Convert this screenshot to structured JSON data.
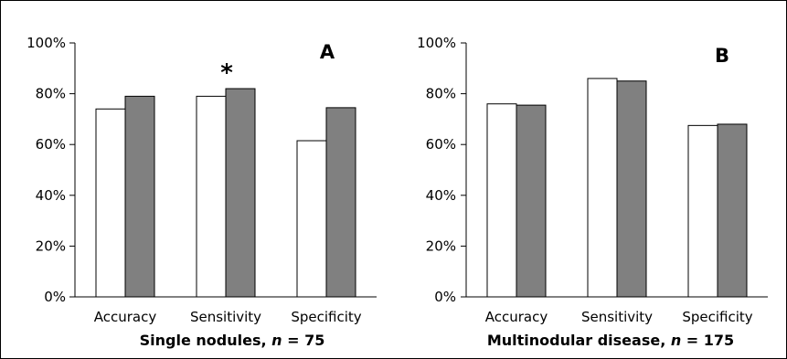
{
  "chart_data": [
    {
      "type": "bar",
      "panel_label": "A",
      "caption": {
        "prefix": "Single nodules, ",
        "n_symbol": "n",
        "suffix": " = 75"
      },
      "categories": [
        "Accuracy",
        "Sensitivity",
        "Specificity"
      ],
      "series": [
        {
          "values": [
            74,
            79,
            61.5
          ],
          "color": "#ffffff"
        },
        {
          "values": [
            79,
            82,
            74.5
          ],
          "color": "#808080"
        }
      ],
      "ylim": [
        0,
        100
      ],
      "yticks": [
        "0%",
        "20%",
        "40%",
        "60%",
        "80%",
        "100%"
      ],
      "ytick_values": [
        0,
        20,
        40,
        60,
        80,
        100
      ],
      "annotation": {
        "text": "*",
        "category": "Sensitivity"
      }
    },
    {
      "type": "bar",
      "panel_label": "B",
      "caption": {
        "prefix": "Multinodular disease, ",
        "n_symbol": "n",
        "suffix": " = 175"
      },
      "categories": [
        "Accuracy",
        "Sensitivity",
        "Specificity"
      ],
      "series": [
        {
          "values": [
            76,
            86,
            67.5
          ],
          "color": "#ffffff"
        },
        {
          "values": [
            75.5,
            85,
            68
          ],
          "color": "#808080"
        }
      ],
      "ylim": [
        0,
        100
      ],
      "yticks": [
        "0%",
        "20%",
        "40%",
        "60%",
        "80%",
        "100%"
      ],
      "ytick_values": [
        0,
        20,
        40,
        60,
        80,
        100
      ]
    }
  ]
}
